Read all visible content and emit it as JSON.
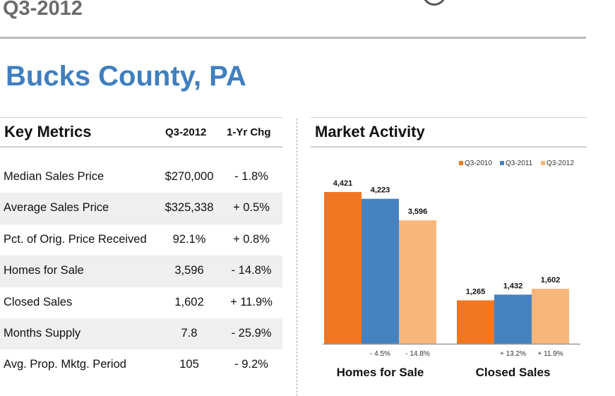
{
  "header": {
    "quarter": "Q3-2012",
    "county": "Bucks County, PA"
  },
  "metrics": {
    "heading": "Key Metrics",
    "col_period": "Q3-2012",
    "col_change": "1-Yr Chg",
    "rows": [
      {
        "label": "Median Sales Price",
        "value": "$270,000",
        "change": "- 1.8%"
      },
      {
        "label": "Average Sales Price",
        "value": "$325,338",
        "change": "+ 0.5%"
      },
      {
        "label": "Pct. of Orig. Price Received",
        "value": "92.1%",
        "change": "+ 0.8%"
      },
      {
        "label": "Homes for Sale",
        "value": "3,596",
        "change": "- 14.8%"
      },
      {
        "label": "Closed Sales",
        "value": "1,602",
        "change": "+ 11.9%"
      },
      {
        "label": "Months Supply",
        "value": "7.8",
        "change": "- 25.9%"
      },
      {
        "label": "Avg. Prop. Mktg. Period",
        "value": "105",
        "change": "- 9.2%"
      }
    ]
  },
  "chart_data": {
    "type": "bar",
    "title": "Market Activity",
    "categories": [
      "Homes for Sale",
      "Closed Sales"
    ],
    "series": [
      {
        "name": "Q3-2010",
        "color": "#f07621",
        "values": [
          4421,
          1265
        ],
        "labels": [
          "4,421",
          "1,265"
        ]
      },
      {
        "name": "Q3-2011",
        "color": "#4682c0",
        "values": [
          4223,
          1432
        ],
        "labels": [
          "4,223",
          "1,432"
        ]
      },
      {
        "name": "Q3-2012",
        "color": "#f9b67b",
        "values": [
          3596,
          1602
        ],
        "labels": [
          "3,596",
          "1,602"
        ]
      }
    ],
    "changes": [
      [
        "- 4.5%",
        "- 14.8%"
      ],
      [
        "+ 13.2%",
        "+ 11.9%"
      ]
    ],
    "ylim": [
      0,
      4421
    ],
    "legend": "top-right",
    "grid": false
  }
}
